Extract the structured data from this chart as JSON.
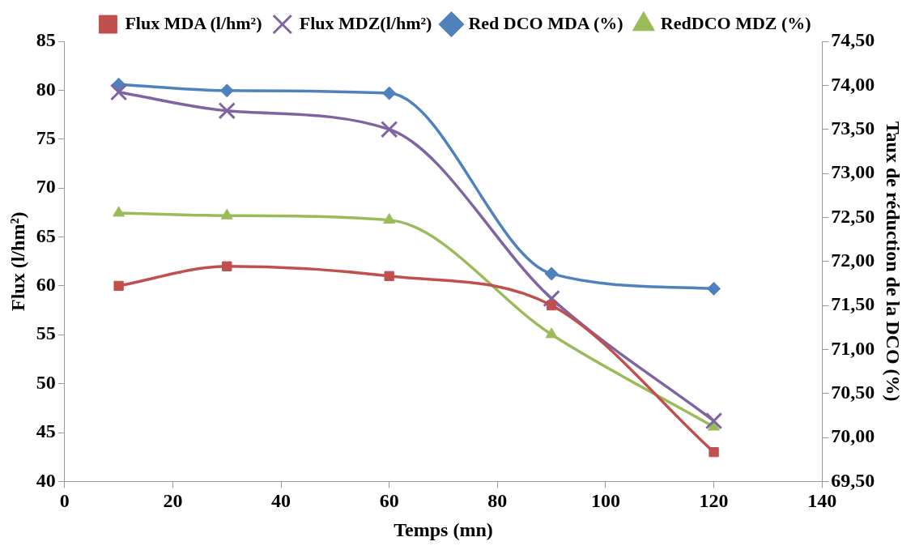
{
  "chart_data": {
    "type": "line",
    "xlabel": "Temps (mn)",
    "ylabel": "Flux (l/hm²)",
    "y2label": "Taux de réduction de la DCO (%)",
    "x": [
      10,
      30,
      60,
      90,
      120
    ],
    "series": [
      {
        "name": "Flux MDA (l/hm²)",
        "color": "#c0504d",
        "marker": "square",
        "values": [
          60,
          62,
          61,
          58,
          43
        ]
      },
      {
        "name": "Flux MDZ(l/hm²)",
        "color": "#8064a2",
        "marker": "cross",
        "values": [
          79.8,
          77.9,
          76,
          58.7,
          46.2
        ]
      },
      {
        "name": "Red DCO MDA (%)",
        "color": "#4f81bd",
        "marker": "diamond",
        "axis": "y2",
        "values": [
          74.01,
          73.94,
          73.91,
          71.86,
          71.69
        ]
      },
      {
        "name": "RedDCO MDZ (%)",
        "color": "#9bbb59",
        "marker": "triangle",
        "axis": "y2",
        "values": [
          72.55,
          72.52,
          72.47,
          71.17,
          70.12
        ]
      }
    ],
    "xlim": [
      0,
      140
    ],
    "xticks": [
      0,
      20,
      40,
      60,
      80,
      100,
      120,
      140
    ],
    "ylim": [
      40,
      85
    ],
    "yticks": [
      40,
      45,
      50,
      55,
      60,
      65,
      70,
      75,
      80,
      85
    ],
    "y2lim": [
      69.5,
      74.5
    ],
    "y2ticks": [
      {
        "value": 69.5,
        "label": "69,50"
      },
      {
        "value": 70,
        "label": "70,00"
      },
      {
        "value": 70.5,
        "label": "70,50"
      },
      {
        "value": 71,
        "label": "71,00"
      },
      {
        "value": 71.5,
        "label": "71,50"
      },
      {
        "value": 72,
        "label": "72,00"
      },
      {
        "value": 72.5,
        "label": "72,50"
      },
      {
        "value": 73,
        "label": "73,00"
      },
      {
        "value": 73.5,
        "label": "73,50"
      },
      {
        "value": 74,
        "label": "74,00"
      },
      {
        "value": 74.5,
        "label": "74,50"
      }
    ],
    "grid": false,
    "legend": "top",
    "line_style": "solid"
  }
}
